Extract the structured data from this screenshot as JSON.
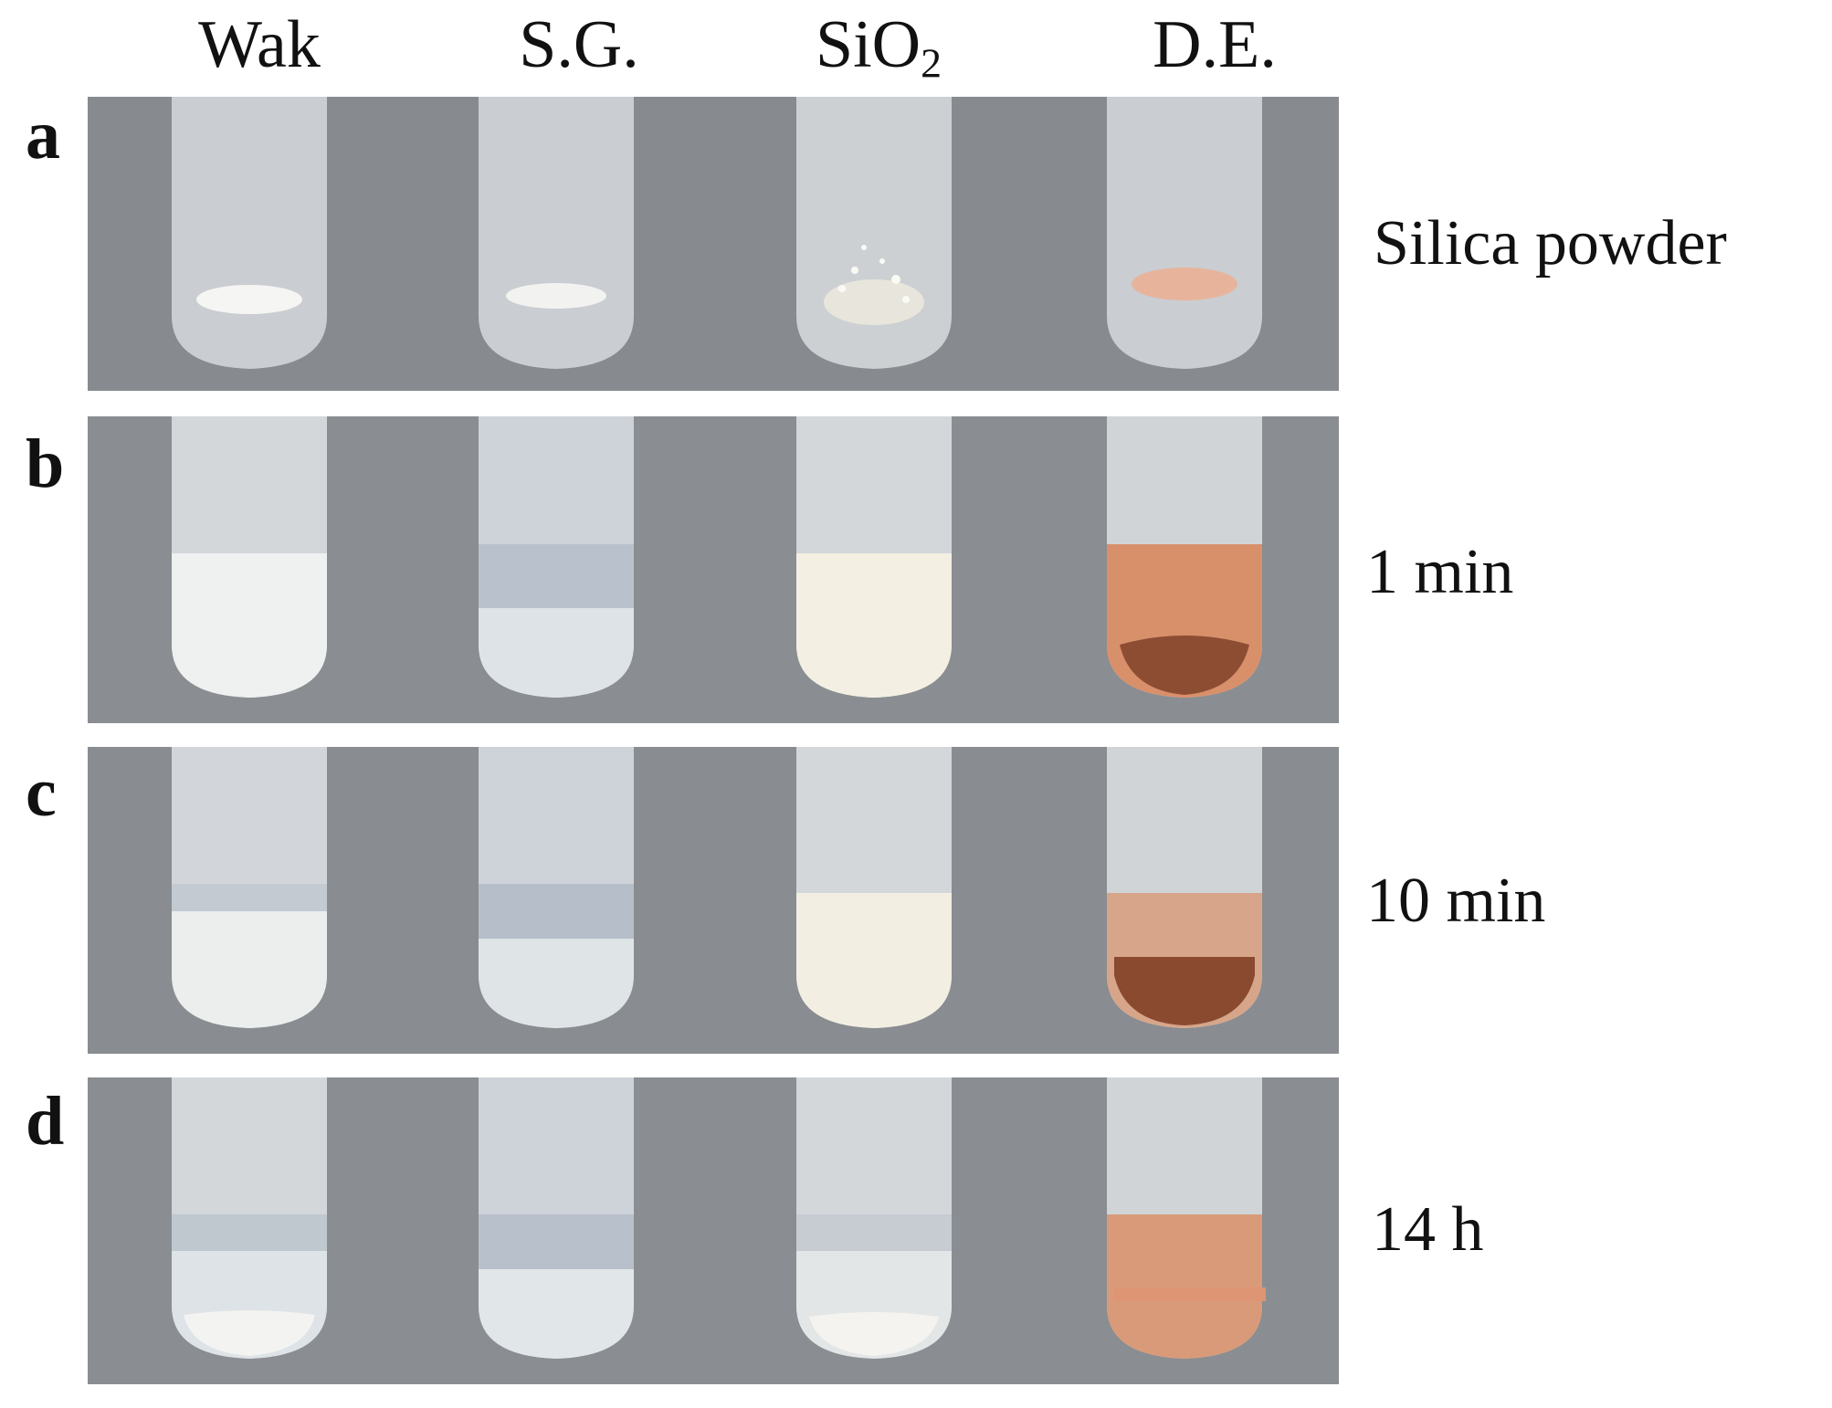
{
  "columns": [
    {
      "label": "Wak",
      "sub": ""
    },
    {
      "label": "S.G.",
      "sub": ""
    },
    {
      "label": "SiO",
      "sub": "2"
    },
    {
      "label": "D.E.",
      "sub": ""
    }
  ],
  "rows": [
    {
      "letter": "a",
      "caption": "Silica powder"
    },
    {
      "letter": "b",
      "caption": "1 min"
    },
    {
      "letter": "c",
      "caption": "10 min"
    },
    {
      "letter": "d",
      "caption": "14 h"
    }
  ],
  "colors": {
    "background": "#8a8d91",
    "tube": "#d7dadd",
    "white_suspension": "#eef0ef",
    "cream_suspension": "#f2efe3",
    "de_orange": "#d9936e",
    "de_dark": "#8a4a30",
    "clear_liquid": "#c9cfd6"
  }
}
